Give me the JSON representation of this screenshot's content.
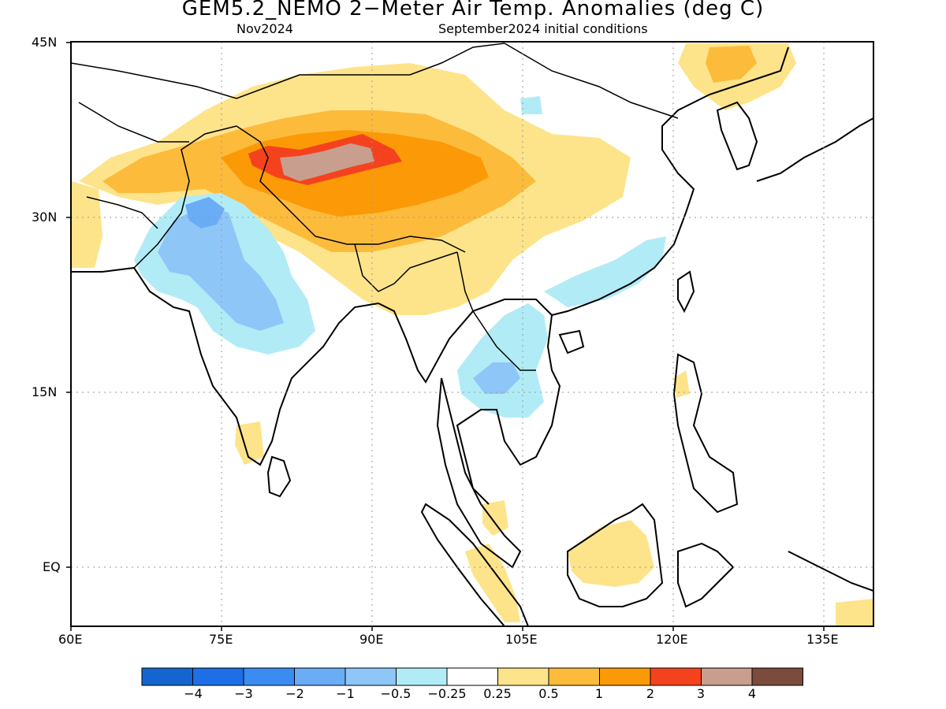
{
  "title": "GEM5.2_NEMO 2−Meter Air Temp. Anomalies (deg C)",
  "subtitle_left": "Nov2024",
  "subtitle_right": "September2024 initial conditions",
  "lat_ticks": [
    "45N",
    "30N",
    "15N",
    "EQ"
  ],
  "lon_ticks": [
    "60E",
    "75E",
    "90E",
    "105E",
    "120E",
    "135E"
  ],
  "colorbar": {
    "colors": [
      "#1565d0",
      "#1e6ee8",
      "#3a8cf2",
      "#6aacf5",
      "#8fc6f8",
      "#b1ecf6",
      "#ffffff",
      "#fde48a",
      "#fdbb3c",
      "#fb9a06",
      "#f5421e",
      "#c89e8e",
      "#7b4b3e"
    ],
    "labels": [
      "−4",
      "−3",
      "−2",
      "−1",
      "−0.5",
      "−0.25",
      "0.25",
      "0.5",
      "1",
      "2",
      "3",
      "4"
    ]
  },
  "map": {
    "lon_range": [
      60,
      140
    ],
    "lat_range": [
      -5,
      45
    ],
    "grid": true
  }
}
